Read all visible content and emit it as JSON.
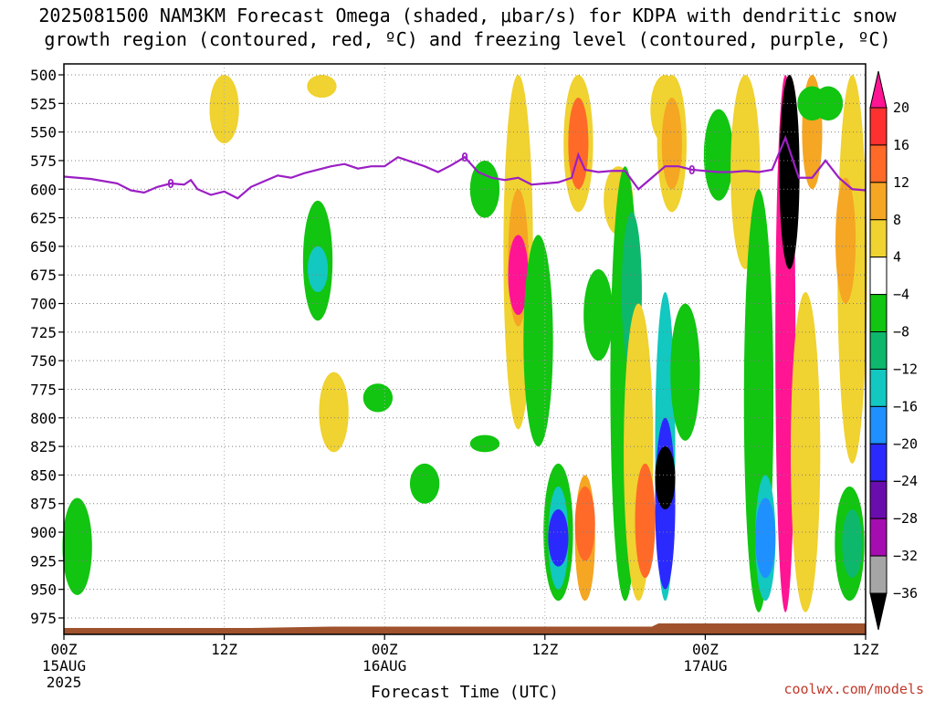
{
  "title": {
    "line1": "2025081500 NAM3KM Forecast Omega (shaded, μbar/s) for KDPA with dendritic snow",
    "line2": "growth region (contoured, red, ºC) and freezing level (contoured, purple, ºC)"
  },
  "credit": "coolwx.com/models",
  "colors": {
    "freezing_level": "#9b1fc4",
    "ground": "#a0522d",
    "grid": "#808080"
  },
  "chart_data": {
    "type": "heatmap",
    "xlabel": "Forecast Time (UTC)",
    "ylabel": "",
    "x_unit": "hours since 2025-08-15 00Z",
    "xlim": [
      0,
      60
    ],
    "ylim": [
      500,
      990
    ],
    "y_scale": "pressure (inverted)",
    "grid": true,
    "x_ticks": [
      {
        "hour": 0,
        "label": "00Z",
        "sub1": "15AUG",
        "sub2": "2025"
      },
      {
        "hour": 12,
        "label": "12Z",
        "sub1": "",
        "sub2": ""
      },
      {
        "hour": 24,
        "label": "00Z",
        "sub1": "16AUG",
        "sub2": ""
      },
      {
        "hour": 36,
        "label": "12Z",
        "sub1": "",
        "sub2": ""
      },
      {
        "hour": 48,
        "label": "00Z",
        "sub1": "17AUG",
        "sub2": ""
      },
      {
        "hour": 60,
        "label": "12Z",
        "sub1": "",
        "sub2": ""
      }
    ],
    "y_ticks": [
      500,
      525,
      550,
      575,
      600,
      625,
      650,
      675,
      700,
      725,
      750,
      775,
      800,
      825,
      850,
      875,
      900,
      925,
      950,
      975
    ],
    "colorbar": {
      "unit": "μbar/s",
      "labels": [
        "20",
        "16",
        "12",
        "8",
        "4",
        "−4",
        "−8",
        "−12",
        "−16",
        "−20",
        "−24",
        "−28",
        "−32",
        "−36"
      ],
      "bins": [
        {
          "range": "> 20",
          "color": "#ff1493"
        },
        {
          "range": "16 to 20",
          "color": "#ff3030"
        },
        {
          "range": "12 to 16",
          "color": "#ff6a28"
        },
        {
          "range": "8 to 12",
          "color": "#f5a623"
        },
        {
          "range": "4 to 8",
          "color": "#f0d230"
        },
        {
          "range": "-4 to 4",
          "color": "#ffffff"
        },
        {
          "range": "-8 to -4",
          "color": "#11c511"
        },
        {
          "range": "-12 to -8",
          "color": "#0db86d"
        },
        {
          "range": "-16 to -12",
          "color": "#12c8c0"
        },
        {
          "range": "-20 to -16",
          "color": "#1e90ff"
        },
        {
          "range": "-24 to -20",
          "color": "#2a2aff"
        },
        {
          "range": "-28 to -24",
          "color": "#6a0dad"
        },
        {
          "range": "-32 to -28",
          "color": "#a50db0"
        },
        {
          "range": "-36 to -32",
          "color": "#a6a6a6"
        },
        {
          "range": "< -36",
          "color": "#000000"
        }
      ]
    },
    "freezing_level": {
      "label": "0",
      "points": [
        [
          0,
          589
        ],
        [
          2,
          591
        ],
        [
          4,
          595
        ],
        [
          5,
          601
        ],
        [
          6,
          603
        ],
        [
          7,
          598
        ],
        [
          8,
          595
        ],
        [
          9,
          596
        ],
        [
          9.5,
          592
        ],
        [
          10,
          600
        ],
        [
          11,
          605
        ],
        [
          12,
          602
        ],
        [
          13,
          608
        ],
        [
          14,
          598
        ],
        [
          15,
          593
        ],
        [
          16,
          588
        ],
        [
          17,
          590
        ],
        [
          18,
          586
        ],
        [
          19,
          583
        ],
        [
          20,
          580
        ],
        [
          21,
          578
        ],
        [
          22,
          582
        ],
        [
          23,
          580
        ],
        [
          24,
          580
        ],
        [
          25,
          572
        ],
        [
          26,
          576
        ],
        [
          27,
          580
        ],
        [
          28,
          585
        ],
        [
          29,
          579
        ],
        [
          30,
          572
        ],
        [
          31,
          585
        ],
        [
          32,
          590
        ],
        [
          33,
          592
        ],
        [
          34,
          590
        ],
        [
          35,
          596
        ],
        [
          36,
          595
        ],
        [
          37,
          594
        ],
        [
          38,
          590
        ],
        [
          38.5,
          570
        ],
        [
          39,
          583
        ],
        [
          40,
          585
        ],
        [
          41,
          584
        ],
        [
          42,
          584
        ],
        [
          43,
          600
        ],
        [
          44,
          590
        ],
        [
          45,
          580
        ],
        [
          46,
          580
        ],
        [
          47,
          583
        ],
        [
          48,
          584
        ],
        [
          49,
          585
        ],
        [
          50,
          585
        ],
        [
          51,
          584
        ],
        [
          52,
          585
        ],
        [
          53,
          583
        ],
        [
          54,
          555
        ],
        [
          55,
          590
        ],
        [
          56,
          590
        ],
        [
          57,
          575
        ],
        [
          58,
          590
        ],
        [
          59,
          600
        ],
        [
          60,
          601
        ]
      ]
    },
    "shaded_regions": [
      {
        "bin": "4 to 8",
        "t": 12,
        "p1": 500,
        "p2": 560
      },
      {
        "bin": "4 to 8",
        "t": 19.3,
        "p1": 500,
        "p2": 520
      },
      {
        "bin": "-8 to -4",
        "t": 19.0,
        "p1": 610,
        "p2": 715
      },
      {
        "bin": "-16 to -12",
        "t": 19.0,
        "p1": 650,
        "p2": 690
      },
      {
        "bin": "-8 to -4",
        "t": 1.0,
        "p1": 870,
        "p2": 955
      },
      {
        "bin": "4 to 8",
        "t": 20.2,
        "p1": 760,
        "p2": 830
      },
      {
        "bin": "-8 to -4",
        "t": 23.5,
        "p1": 770,
        "p2": 795
      },
      {
        "bin": "-8 to -4",
        "t": 27.0,
        "p1": 840,
        "p2": 875
      },
      {
        "bin": "-8 to -4",
        "t": 31.5,
        "p1": 575,
        "p2": 625
      },
      {
        "bin": "-8 to -4",
        "t": 31.5,
        "p1": 815,
        "p2": 830
      },
      {
        "bin": "4 to 8",
        "t": 34.0,
        "p1": 500,
        "p2": 810
      },
      {
        "bin": "8 to 12",
        "t": 34.0,
        "p1": 600,
        "p2": 720
      },
      {
        "bin": "> 20",
        "t": 34.0,
        "p1": 640,
        "p2": 710
      },
      {
        "bin": "-8 to -4",
        "t": 35.5,
        "p1": 640,
        "p2": 825
      },
      {
        "bin": "-8 to -4",
        "t": 37.0,
        "p1": 840,
        "p2": 960
      },
      {
        "bin": "-16 to -12",
        "t": 37.0,
        "p1": 860,
        "p2": 950
      },
      {
        "bin": "-24 to -20",
        "t": 37.0,
        "p1": 880,
        "p2": 930
      },
      {
        "bin": "4 to 8",
        "t": 38.5,
        "p1": 500,
        "p2": 620
      },
      {
        "bin": "12 to 16",
        "t": 38.5,
        "p1": 520,
        "p2": 600
      },
      {
        "bin": "8 to 12",
        "t": 39.0,
        "p1": 850,
        "p2": 960
      },
      {
        "bin": "12 to 16",
        "t": 39.0,
        "p1": 860,
        "p2": 925
      },
      {
        "bin": "-8 to -4",
        "t": 40.0,
        "p1": 670,
        "p2": 750
      },
      {
        "bin": "4 to 8",
        "t": 41.5,
        "p1": 580,
        "p2": 640
      },
      {
        "bin": "-8 to -4",
        "t": 42.0,
        "p1": 580,
        "p2": 960
      },
      {
        "bin": "-12 to -8",
        "t": 42.5,
        "p1": 620,
        "p2": 760
      },
      {
        "bin": "4 to 8",
        "t": 43.0,
        "p1": 700,
        "p2": 960
      },
      {
        "bin": "12 to 16",
        "t": 43.5,
        "p1": 840,
        "p2": 940
      },
      {
        "bin": "-16 to -12",
        "t": 45.0,
        "p1": 690,
        "p2": 960
      },
      {
        "bin": "-24 to -20",
        "t": 45.0,
        "p1": 800,
        "p2": 950
      },
      {
        "bin": "< -36",
        "t": 45.0,
        "p1": 825,
        "p2": 880
      },
      {
        "bin": "4 to 8",
        "t": 45.0,
        "p1": 500,
        "p2": 560
      },
      {
        "bin": "-8 to -4",
        "t": 46.5,
        "p1": 700,
        "p2": 820
      },
      {
        "bin": "4 to 8",
        "t": 45.5,
        "p1": 500,
        "p2": 620
      },
      {
        "bin": "8 to 12",
        "t": 45.5,
        "p1": 520,
        "p2": 600
      },
      {
        "bin": "-8 to -4",
        "t": 49.0,
        "p1": 530,
        "p2": 610
      },
      {
        "bin": "4 to 8",
        "t": 51.0,
        "p1": 500,
        "p2": 670
      },
      {
        "bin": "-8 to -4",
        "t": 52.0,
        "p1": 600,
        "p2": 970
      },
      {
        "bin": "-16 to -12",
        "t": 52.5,
        "p1": 850,
        "p2": 960
      },
      {
        "bin": "-20 to -16",
        "t": 52.5,
        "p1": 870,
        "p2": 940
      },
      {
        "bin": "> 20",
        "t": 54.0,
        "p1": 500,
        "p2": 970
      },
      {
        "bin": "< -36",
        "t": 54.3,
        "p1": 500,
        "p2": 670
      },
      {
        "bin": "4 to 8",
        "t": 55.5,
        "p1": 690,
        "p2": 970
      },
      {
        "bin": "8 to 12",
        "t": 56.0,
        "p1": 500,
        "p2": 600
      },
      {
        "bin": "-8 to -4",
        "t": 56.0,
        "p1": 510,
        "p2": 540
      },
      {
        "bin": "4 to 8",
        "t": 59.0,
        "p1": 500,
        "p2": 840
      },
      {
        "bin": "8 to 12",
        "t": 58.5,
        "p1": 590,
        "p2": 700
      },
      {
        "bin": "-8 to -4",
        "t": 58.8,
        "p1": 860,
        "p2": 960
      },
      {
        "bin": "-12 to -8",
        "t": 59.0,
        "p1": 880,
        "p2": 940
      },
      {
        "bin": "-8 to -4",
        "t": 57.2,
        "p1": 510,
        "p2": 540
      }
    ]
  }
}
